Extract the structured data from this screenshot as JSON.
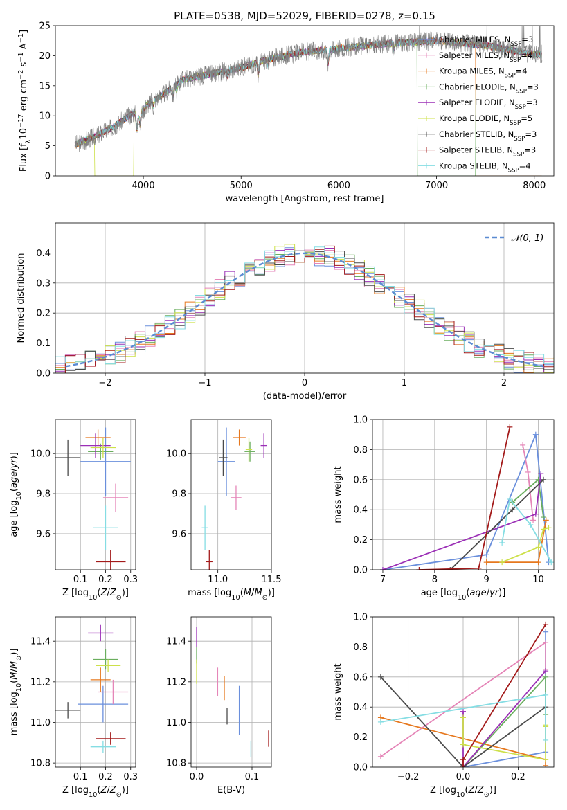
{
  "figure": {
    "title": "PLATE=0538, MJD=52029, FIBERID=0278, z=0.15"
  },
  "legend": {
    "entries": [
      {
        "name": "Chabrier MILES, N<sub>SSP</sub>=3",
        "color": "#6a8fdc"
      },
      {
        "name": "Salpeter MILES, N<sub>SSP</sub>=4",
        "color": "#e586b8"
      },
      {
        "name": "Kroupa MILES, N<sub>SSP</sub>=4",
        "color": "#e6781e"
      },
      {
        "name": "Chabrier ELODIE, N<sub>SSP</sub>=3",
        "color": "#6aae5e"
      },
      {
        "name": "Salpeter ELODIE, N<sub>SSP</sub>=3",
        "color": "#9b2fb6"
      },
      {
        "name": "Kroupa ELODIE, N<sub>SSP</sub>=5",
        "color": "#cde04a"
      },
      {
        "name": "Chabrier STELIB, N<sub>SSP</sub>=3",
        "color": "#4a4a4a"
      },
      {
        "name": "Salpeter STELIB, N<sub>SSP</sub>=3",
        "color": "#a31a1a"
      },
      {
        "name": "Kroupa STELIB, N<sub>SSP</sub>=4",
        "color": "#85dde3"
      }
    ]
  },
  "chart_data": [
    {
      "id": "spectrum",
      "type": "line",
      "xlabel": "wavelength [Angstrom, rest frame]",
      "ylabel": "Flux [f<sub>λ</sub>10<sup>−17</sup> erg cm<sup>−2</sup> s<sup>−1</sup> A<sup>−1</sup>]",
      "xlim": [
        3100,
        8200
      ],
      "ylim": [
        0,
        25
      ],
      "xticks": [
        4000,
        5000,
        6000,
        7000,
        8000
      ],
      "yticks": [
        0,
        5,
        10,
        15,
        20,
        25
      ],
      "grid": false,
      "observed_color": "#808080",
      "continuum": {
        "x": [
          3300,
          3500,
          3700,
          3900,
          3950,
          4050,
          4200,
          4400,
          4700,
          5000,
          5300,
          5600,
          6000,
          6500,
          7000,
          7500,
          8000
        ],
        "y": [
          5.2,
          6.5,
          8.2,
          10.5,
          10.0,
          12.0,
          13.5,
          16.0,
          17.0,
          18.0,
          19.5,
          20.5,
          21.2,
          22.0,
          22.5,
          21.7,
          20.2
        ]
      },
      "absorption_lines": [
        {
          "x": 3934,
          "depth": 2.5
        },
        {
          "x": 3969,
          "depth": 2.0
        },
        {
          "x": 4102,
          "depth": 1.0
        },
        {
          "x": 4304,
          "depth": 1.5
        },
        {
          "x": 4340,
          "depth": 1.0
        },
        {
          "x": 4861,
          "depth": 1.0
        },
        {
          "x": 5175,
          "depth": 2.2
        },
        {
          "x": 5270,
          "depth": 1.0
        },
        {
          "x": 5890,
          "depth": 2.5
        },
        {
          "x": 6563,
          "depth": 1.2
        }
      ],
      "masked_regions": [
        {
          "series": "Kroupa ELODIE",
          "x": [
            3500,
            3900
          ]
        },
        {
          "series": "Chabrier ELODIE",
          "x": [
            6800,
            7400
          ]
        },
        {
          "series": "Kroupa MILES",
          "x": [
            7400,
            8200
          ]
        }
      ]
    },
    {
      "id": "residual_histogram",
      "type": "histogram",
      "xlabel": "(data-model)/error",
      "ylabel": "Normed distribution",
      "xlim": [
        -2.5,
        2.5
      ],
      "ylim": [
        0,
        0.5
      ],
      "xticks": [
        -2,
        -1,
        0,
        1,
        2
      ],
      "yticks": [
        0.0,
        0.1,
        0.2,
        0.3,
        0.4
      ],
      "grid": true,
      "bin_width": 0.1,
      "legend_label": "𝒩(0, 1)",
      "legend_position": "upper right",
      "gaussian": {
        "mean": 0,
        "sigma": 1,
        "color": "#5b8bd1"
      }
    },
    {
      "id": "age_vs_Z",
      "type": "errorbar",
      "xlabel": "Z [log<sub>10</sub>(<i>Z</i>/<i>Z</i><sub>⊙</sub>)]",
      "ylabel": "age  [log<sub>10</sub>(<i>age</i>/<i>yr</i>)]",
      "xlim": [
        0.0,
        0.32
      ],
      "ylim": [
        9.42,
        10.17
      ],
      "xticks": [
        0.1,
        0.2,
        0.3
      ],
      "yticks": [
        9.6,
        9.8,
        10.0
      ],
      "grid": true,
      "points": [
        {
          "series": "Chabrier MILES",
          "x": 0.2,
          "xerr": 0.1,
          "y": 9.96,
          "yerr": 0.17
        },
        {
          "series": "Salpeter MILES",
          "x": 0.24,
          "xerr": 0.05,
          "y": 9.78,
          "yerr": 0.07
        },
        {
          "series": "Kroupa MILES",
          "x": 0.17,
          "xerr": 0.05,
          "y": 10.08,
          "yerr": 0.04
        },
        {
          "series": "Chabrier ELODIE",
          "x": 0.18,
          "xerr": 0.05,
          "y": 10.01,
          "yerr": 0.04
        },
        {
          "series": "Salpeter ELODIE",
          "x": 0.16,
          "xerr": 0.06,
          "y": 10.04,
          "yerr": 0.06
        },
        {
          "series": "Kroupa ELODIE",
          "x": 0.19,
          "xerr": 0.05,
          "y": 10.03,
          "yerr": 0.05
        },
        {
          "series": "Chabrier STELIB",
          "x": 0.05,
          "xerr": 0.05,
          "y": 9.98,
          "yerr": 0.09
        },
        {
          "series": "Salpeter STELIB",
          "x": 0.22,
          "xerr": 0.06,
          "y": 9.46,
          "yerr": 0.06
        },
        {
          "series": "Kroupa STELIB",
          "x": 0.2,
          "xerr": 0.05,
          "y": 9.63,
          "yerr": 0.11
        }
      ]
    },
    {
      "id": "age_vs_mass",
      "type": "errorbar",
      "xlabel": "mass [log<sub>10</sub>(<i>M</i>/<i>M</i><sub>⊙</sub>)]",
      "ylabel": "",
      "xlim": [
        10.75,
        11.5
      ],
      "ylim": [
        9.42,
        10.17
      ],
      "xticks": [
        11.0,
        11.5
      ],
      "yticks": [
        9.6,
        9.8,
        10.0
      ],
      "grid": true,
      "points": [
        {
          "series": "Chabrier MILES",
          "x": 11.08,
          "xerr": 0.08,
          "y": 9.96,
          "yerr": 0.17
        },
        {
          "series": "Salpeter MILES",
          "x": 11.17,
          "xerr": 0.05,
          "y": 9.78,
          "yerr": 0.06
        },
        {
          "series": "Kroupa MILES",
          "x": 11.2,
          "xerr": 0.06,
          "y": 10.08,
          "yerr": 0.04
        },
        {
          "series": "Chabrier ELODIE",
          "x": 11.3,
          "xerr": 0.05,
          "y": 10.01,
          "yerr": 0.05
        },
        {
          "series": "Salpeter ELODIE",
          "x": 11.43,
          "xerr": 0.03,
          "y": 10.04,
          "yerr": 0.06
        },
        {
          "series": "Kroupa ELODIE",
          "x": 11.29,
          "xerr": 0.03,
          "y": 10.02,
          "yerr": 0.06
        },
        {
          "series": "Chabrier STELIB",
          "x": 11.05,
          "xerr": 0.04,
          "y": 9.98,
          "yerr": 0.09
        },
        {
          "series": "Salpeter STELIB",
          "x": 10.92,
          "xerr": 0.03,
          "y": 9.46,
          "yerr": 0.06
        },
        {
          "series": "Kroupa STELIB",
          "x": 10.88,
          "xerr": 0.03,
          "y": 9.63,
          "yerr": 0.11
        }
      ]
    },
    {
      "id": "mass_weight_vs_age",
      "type": "line",
      "xlabel": "age  [log<sub>10</sub>(<i>age</i>/<i>yr</i>)]",
      "ylabel": "mass weight",
      "xlim": [
        6.8,
        10.3
      ],
      "ylim": [
        0.0,
        1.0
      ],
      "xticks": [
        7,
        8,
        9,
        10
      ],
      "yticks": [
        0.0,
        0.2,
        0.4,
        0.6,
        0.8,
        1.0
      ],
      "grid": true,
      "series": [
        {
          "name": "Chabrier MILES",
          "x": [
            7.0,
            9.0,
            9.95,
            10.2
          ],
          "y": [
            0.0,
            0.1,
            0.9,
            0.05
          ]
        },
        {
          "name": "Salpeter MILES",
          "x": [
            9.7,
            9.8,
            9.9
          ],
          "y": [
            0.83,
            0.65,
            0.33
          ]
        },
        {
          "name": "Kroupa MILES",
          "x": [
            9.0,
            10.0,
            10.15
          ],
          "y": [
            0.05,
            0.05,
            0.33
          ]
        },
        {
          "name": "Chabrier ELODIE",
          "x": [
            9.5,
            10.0,
            10.1
          ],
          "y": [
            0.45,
            0.6,
            0.35
          ]
        },
        {
          "name": "Salpeter ELODIE",
          "x": [
            7.0,
            9.95,
            10.05
          ],
          "y": [
            0.0,
            0.37,
            0.64
          ]
        },
        {
          "name": "Kroupa ELODIE",
          "x": [
            9.3,
            10.0,
            10.1,
            10.2
          ],
          "y": [
            0.05,
            0.15,
            0.27,
            0.28
          ]
        },
        {
          "name": "Chabrier STELIB",
          "x": [
            8.3,
            9.5,
            10.1
          ],
          "y": [
            0.0,
            0.4,
            0.6
          ]
        },
        {
          "name": "Salpeter STELIB",
          "x": [
            7.7,
            8.85,
            9.45
          ],
          "y": [
            0.0,
            0.01,
            0.95
          ]
        },
        {
          "name": "Kroupa STELIB",
          "x": [
            9.3,
            9.45,
            9.85,
            10.25
          ],
          "y": [
            0.18,
            0.47,
            0.3,
            0.05
          ]
        }
      ]
    },
    {
      "id": "mass_vs_Z",
      "type": "errorbar",
      "xlabel": "Z [log<sub>10</sub>(<i>Z</i>/<i>Z</i><sub>⊙</sub>)]",
      "ylabel": "mass [log<sub>10</sub>(<i>M</i>/<i>M</i><sub>⊙</sub>)]",
      "xlim": [
        0.0,
        0.32
      ],
      "ylim": [
        10.78,
        11.52
      ],
      "xticks": [
        0.1,
        0.2,
        0.3
      ],
      "yticks": [
        10.8,
        11.0,
        11.2,
        11.4
      ],
      "grid": true,
      "points": [
        {
          "series": "Chabrier MILES",
          "x": 0.19,
          "xerr": 0.1,
          "y": 11.09,
          "yerr": 0.09
        },
        {
          "series": "Salpeter MILES",
          "x": 0.23,
          "xerr": 0.06,
          "y": 11.15,
          "yerr": 0.06
        },
        {
          "series": "Kroupa MILES",
          "x": 0.18,
          "xerr": 0.04,
          "y": 11.21,
          "yerr": 0.06
        },
        {
          "series": "Chabrier ELODIE",
          "x": 0.2,
          "xerr": 0.05,
          "y": 11.31,
          "yerr": 0.05
        },
        {
          "series": "Salpeter ELODIE",
          "x": 0.18,
          "xerr": 0.05,
          "y": 11.44,
          "yerr": 0.04
        },
        {
          "series": "Kroupa ELODIE",
          "x": 0.21,
          "xerr": 0.05,
          "y": 11.28,
          "yerr": 0.03
        },
        {
          "series": "Chabrier STELIB",
          "x": 0.05,
          "xerr": 0.05,
          "y": 11.06,
          "yerr": 0.04
        },
        {
          "series": "Salpeter STELIB",
          "x": 0.22,
          "xerr": 0.06,
          "y": 10.92,
          "yerr": 0.03
        },
        {
          "series": "Kroupa STELIB",
          "x": 0.19,
          "xerr": 0.05,
          "y": 10.88,
          "yerr": 0.03
        }
      ]
    },
    {
      "id": "mass_vs_ebv",
      "type": "errorbar",
      "xlabel": "E(B-V)",
      "ylabel": "",
      "xlim": [
        -0.01,
        0.135
      ],
      "ylim": [
        10.78,
        11.52
      ],
      "xticks": [
        0.0,
        0.1
      ],
      "yticks": [
        10.8,
        11.0,
        11.2,
        11.4
      ],
      "grid": true,
      "points": [
        {
          "series": "Chabrier MILES",
          "x": 0.077,
          "xerr": 0.0,
          "y": 11.06,
          "yerr": 0.12
        },
        {
          "series": "Salpeter MILES",
          "x": 0.038,
          "xerr": 0.0,
          "y": 11.2,
          "yerr": 0.07
        },
        {
          "series": "Kroupa MILES",
          "x": 0.05,
          "xerr": 0.0,
          "y": 11.17,
          "yerr": 0.06
        },
        {
          "series": "Chabrier ELODIE",
          "x": 0.0,
          "xerr": 0.0,
          "y": 11.33,
          "yerr": 0.04
        },
        {
          "series": "Salpeter ELODIE",
          "x": 0.0,
          "xerr": 0.0,
          "y": 11.42,
          "yerr": 0.05
        },
        {
          "series": "Kroupa ELODIE",
          "x": 0.0,
          "xerr": 0.0,
          "y": 11.25,
          "yerr": 0.06
        },
        {
          "series": "Chabrier STELIB",
          "x": 0.055,
          "xerr": 0.0,
          "y": 11.03,
          "yerr": 0.04
        },
        {
          "series": "Salpeter STELIB",
          "x": 0.13,
          "xerr": 0.0,
          "y": 10.92,
          "yerr": 0.04
        },
        {
          "series": "Kroupa STELIB",
          "x": 0.098,
          "xerr": 0.0,
          "y": 10.87,
          "yerr": 0.04
        }
      ]
    },
    {
      "id": "mass_weight_vs_Z",
      "type": "line",
      "xlabel": "Z [log<sub>10</sub>(<i>Z</i>/<i>Z</i><sub>⊙</sub>)]",
      "ylabel": "mass weight",
      "xlim": [
        -0.33,
        0.33
      ],
      "ylim": [
        0.0,
        1.0
      ],
      "xticks": [
        -0.2,
        0.0,
        0.2
      ],
      "yticks": [
        0.0,
        0.2,
        0.4,
        0.6,
        0.8,
        1.0
      ],
      "grid": true,
      "series": [
        {
          "name": "Chabrier MILES",
          "x": [
            0.0,
            0.3,
            0.3
          ],
          "y": [
            0.0,
            0.1,
            0.9
          ]
        },
        {
          "name": "Salpeter MILES",
          "x": [
            -0.3,
            0.3,
            0.3
          ],
          "y": [
            0.07,
            0.83,
            0.65
          ]
        },
        {
          "name": "Kroupa MILES",
          "x": [
            -0.3,
            0.3,
            0.3
          ],
          "y": [
            0.33,
            0.05,
            0.01
          ]
        },
        {
          "name": "Chabrier ELODIE",
          "x": [
            0.0,
            0.3,
            0.3
          ],
          "y": [
            0.0,
            0.6,
            0.35
          ]
        },
        {
          "name": "Salpeter ELODIE",
          "x": [
            0.0,
            0.0,
            0.3
          ],
          "y": [
            0.37,
            0.0,
            0.64
          ]
        },
        {
          "name": "Kroupa ELODIE",
          "x": [
            0.0,
            0.0,
            0.3,
            0.3,
            0.3
          ],
          "y": [
            0.33,
            0.15,
            0.05,
            0.27,
            0.28
          ]
        },
        {
          "name": "Chabrier STELIB",
          "x": [
            -0.3,
            0.0,
            0.3
          ],
          "y": [
            0.6,
            0.0,
            0.4
          ]
        },
        {
          "name": "Salpeter STELIB",
          "x": [
            0.0,
            0.0,
            0.3
          ],
          "y": [
            0.0,
            0.05,
            0.95
          ]
        },
        {
          "name": "Kroupa STELIB",
          "x": [
            -0.3,
            0.3,
            0.3
          ],
          "y": [
            0.3,
            0.48,
            0.18
          ]
        }
      ]
    }
  ]
}
